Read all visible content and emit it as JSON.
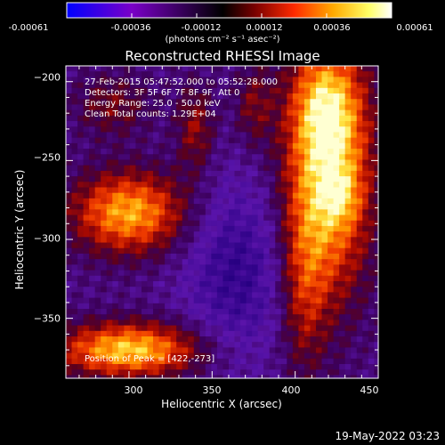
{
  "colorbar": {
    "ticks": [
      "-0.00061",
      "-0.00036",
      "-0.00012",
      "0.00012",
      "0.00036",
      "0.00061"
    ],
    "units": "(photons cm⁻² s⁻¹ asec⁻²)",
    "range": [
      -0.00061,
      0.00061
    ],
    "colormap": [
      "#0000ff",
      "#7a00c8",
      "#000000",
      "#7a0000",
      "#ff2a00",
      "#ffaa00",
      "#ffff66",
      "#ffffff"
    ]
  },
  "header": {
    "title": "Reconstructed RHESSI Image"
  },
  "info": {
    "time": "27-Feb-2015 05:47:52.000 to 05:52:28.000",
    "detectors": "Detectors: 3F 5F 6F 7F 8F 9F, Att 0",
    "energy": "Energy Range: 25.0 - 50.0 keV",
    "clean": "Clean     Total counts: 1.29E+04"
  },
  "peak_label": "Position of Peak = [422,-273]",
  "footer": {
    "date": "19-May-2022 03:23"
  },
  "chart_data": {
    "type": "heatmap",
    "title": "Reconstructed RHESSI Image",
    "xlabel": "Heliocentric X (arcsec)",
    "ylabel": "Heliocentric Y (arcsec)",
    "xlim": [
      262,
      450
    ],
    "ylim": [
      -388,
      -190
    ],
    "xticks": [
      300,
      350,
      400,
      450
    ],
    "xtick_labels": [
      "300",
      "350",
      "400",
      "450"
    ],
    "yticks": [
      -200,
      -250,
      -300,
      -350
    ],
    "ytick_labels": [
      "−200",
      "−250",
      "−300",
      "−350"
    ],
    "peak": [
      422,
      -273
    ],
    "grid": false
  }
}
